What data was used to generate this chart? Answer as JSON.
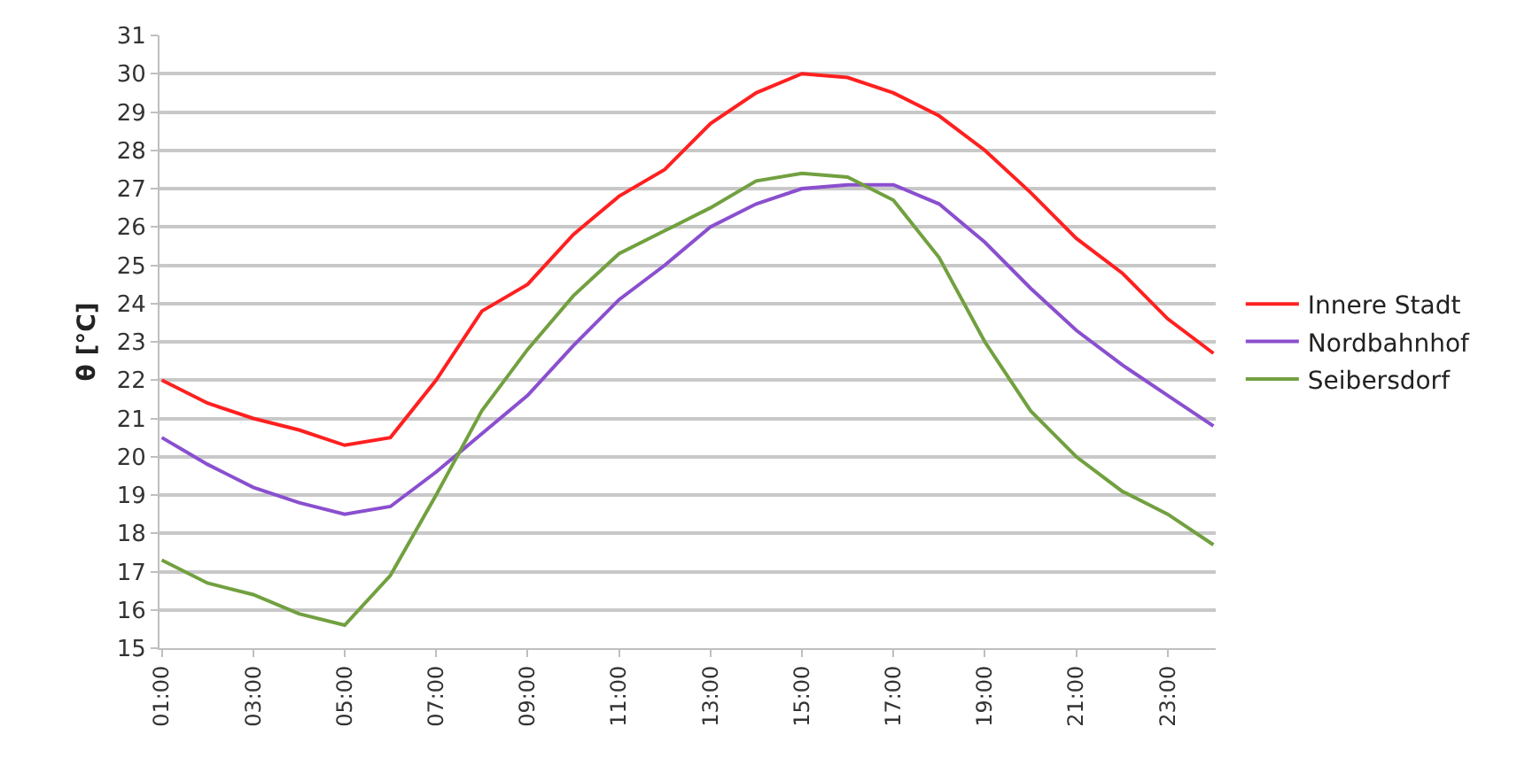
{
  "chart_data": {
    "type": "line",
    "ylabel": "θ [°C]",
    "categories": [
      "01:00",
      null,
      "03:00",
      null,
      "05:00",
      null,
      "07:00",
      null,
      "09:00",
      null,
      "11:00",
      null,
      "13:00",
      null,
      "15:00",
      null,
      "17:00",
      null,
      "19:00",
      null,
      "21:00",
      null,
      "23:00",
      null
    ],
    "series": [
      {
        "name": "Innere Stadt",
        "color": "#ff2020",
        "values": [
          22.0,
          21.4,
          21.0,
          20.7,
          20.3,
          20.5,
          22.0,
          23.8,
          24.5,
          25.8,
          26.8,
          27.5,
          28.7,
          29.5,
          30.0,
          29.9,
          29.5,
          28.9,
          28.0,
          26.9,
          25.7,
          24.8,
          23.6,
          22.7
        ]
      },
      {
        "name": "Nordbahnhof",
        "color": "#8a4fcf",
        "values": [
          20.5,
          19.8,
          19.2,
          18.8,
          18.5,
          18.7,
          19.6,
          20.6,
          21.6,
          22.9,
          24.1,
          25.0,
          26.0,
          26.6,
          27.0,
          27.1,
          27.1,
          26.6,
          25.6,
          24.4,
          23.3,
          22.4,
          21.6,
          20.8
        ]
      },
      {
        "name": "Seibersdorf",
        "color": "#72a040",
        "values": [
          17.3,
          16.7,
          16.4,
          15.9,
          15.6,
          16.9,
          19.0,
          21.2,
          22.8,
          24.2,
          25.3,
          25.9,
          26.5,
          27.2,
          27.4,
          27.3,
          26.7,
          25.2,
          23.0,
          21.2,
          20.0,
          19.1,
          18.5,
          17.7
        ]
      }
    ],
    "ylim": [
      15,
      31
    ],
    "yticks": [
      15,
      16,
      17,
      18,
      19,
      20,
      21,
      22,
      23,
      24,
      25,
      26,
      27,
      28,
      29,
      30,
      31
    ],
    "grid": "y",
    "legend": "right",
    "marker": "none",
    "line_style": "solid"
  }
}
